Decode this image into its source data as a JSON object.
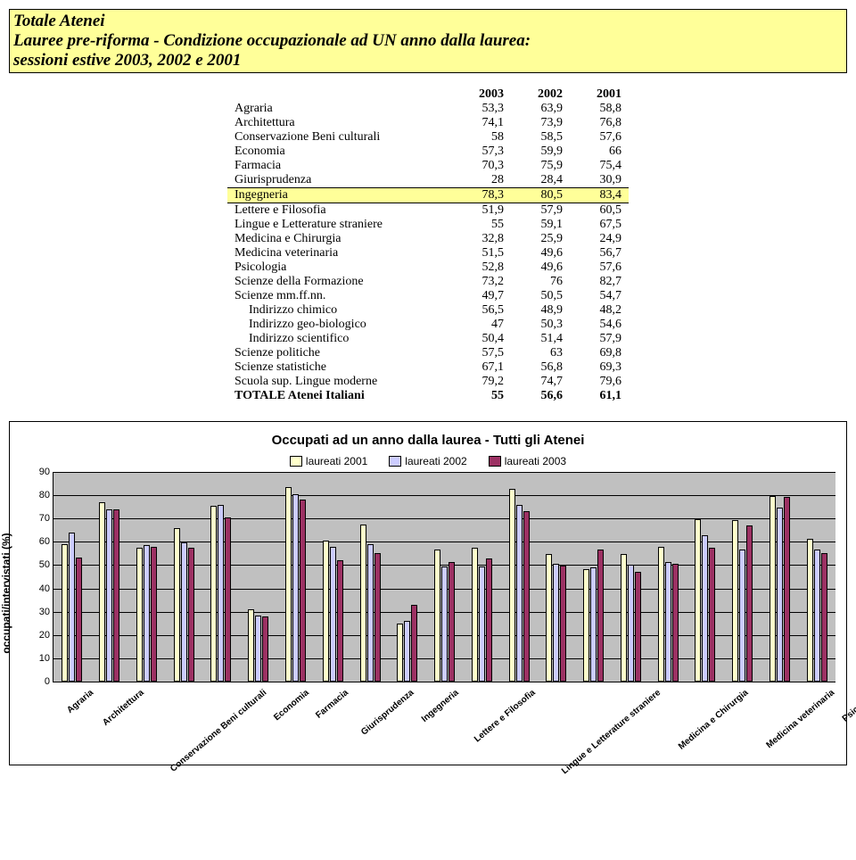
{
  "header": {
    "title": "Totale Atenei",
    "subtitle1": "Lauree pre-riforma - Condizione occupazionale ad UN anno dalla laurea:",
    "subtitle2": "sessioni estive 2003, 2002 e 2001"
  },
  "table": {
    "columns": [
      "2003",
      "2002",
      "2001"
    ],
    "rows": [
      {
        "label": "Agraria",
        "v": [
          "53,3",
          "63,9",
          "58,8"
        ]
      },
      {
        "label": "Architettura",
        "v": [
          "74,1",
          "73,9",
          "76,8"
        ]
      },
      {
        "label": "Conservazione Beni culturali",
        "v": [
          "58",
          "58,5",
          "57,6"
        ]
      },
      {
        "label": "Economia",
        "v": [
          "57,3",
          "59,9",
          "66"
        ]
      },
      {
        "label": "Farmacia",
        "v": [
          "70,3",
          "75,9",
          "75,4"
        ]
      },
      {
        "label": "Giurisprudenza",
        "v": [
          "28",
          "28,4",
          "30,9"
        ]
      },
      {
        "label": "Ingegneria",
        "v": [
          "78,3",
          "80,5",
          "83,4"
        ],
        "hl": true
      },
      {
        "label": "Lettere e Filosofia",
        "v": [
          "51,9",
          "57,9",
          "60,5"
        ]
      },
      {
        "label": "Lingue e Letterature straniere",
        "v": [
          "55",
          "59,1",
          "67,5"
        ]
      },
      {
        "label": "Medicina e Chirurgia",
        "v": [
          "32,8",
          "25,9",
          "24,9"
        ]
      },
      {
        "label": "Medicina veterinaria",
        "v": [
          "51,5",
          "49,6",
          "56,7"
        ]
      },
      {
        "label": "Psicologia",
        "v": [
          "52,8",
          "49,6",
          "57,6"
        ]
      },
      {
        "label": "Scienze della Formazione",
        "v": [
          "73,2",
          "76",
          "82,7"
        ]
      },
      {
        "label": "Scienze mm.ff.nn.",
        "v": [
          "49,7",
          "50,5",
          "54,7"
        ]
      },
      {
        "label": "Indirizzo chimico",
        "v": [
          "56,5",
          "48,9",
          "48,2"
        ],
        "indent": true
      },
      {
        "label": "Indirizzo geo-biologico",
        "v": [
          "47",
          "50,3",
          "54,6"
        ],
        "indent": true
      },
      {
        "label": "Indirizzo scientifico",
        "v": [
          "50,4",
          "51,4",
          "57,9"
        ],
        "indent": true
      },
      {
        "label": "Scienze politiche",
        "v": [
          "57,5",
          "63",
          "69,8"
        ]
      },
      {
        "label": "Scienze statistiche",
        "v": [
          "67,1",
          "56,8",
          "69,3"
        ]
      },
      {
        "label": "Scuola sup. Lingue moderne",
        "v": [
          "79,2",
          "74,7",
          "79,6"
        ]
      },
      {
        "label": "TOTALE Atenei Italiani",
        "v": [
          "55",
          "56,6",
          "61,1"
        ],
        "total": true
      }
    ]
  },
  "chart": {
    "title": "Occupati ad un anno dalla laurea - Tutti gli Atenei",
    "y_label": "occupati/intervistati (%)",
    "ymax": 90,
    "ytick_step": 10,
    "legend": [
      {
        "label": "laureati 2001",
        "color": "#ffffcc"
      },
      {
        "label": "laureati 2002",
        "color": "#ccccff"
      },
      {
        "label": "laureati 2003",
        "color": "#9c3163"
      }
    ],
    "background_color": "#c0c0c0",
    "categories": [
      "Agraria",
      "Architettura",
      "Conservazione Beni culturali",
      "Economia",
      "Farmacia",
      "Giurisprudenza",
      "Ingegneria",
      "Lettere e Filosofia",
      "Lingue e Letterature straniere",
      "Medicina e Chirurgia",
      "Medicina veterinaria",
      "Psicologia",
      "Scienze della Formazione",
      "Scienze mm.ff.nn.",
      "Indirizzo chimico",
      "Indirizzo geo-biologico",
      "Indirizzo scientifico",
      "Scienze politiche",
      "Scienze statistiche",
      "Scuola sup. Lingue moderne",
      "TOTALE Atenei Italiani"
    ],
    "series": {
      "s2001": [
        58.8,
        76.8,
        57.6,
        66,
        75.4,
        30.9,
        83.4,
        60.5,
        67.5,
        24.9,
        56.7,
        57.6,
        82.7,
        54.7,
        48.2,
        54.6,
        57.9,
        69.8,
        69.3,
        79.6,
        61.1
      ],
      "s2002": [
        63.9,
        73.9,
        58.5,
        59.9,
        75.9,
        28.4,
        80.5,
        57.9,
        59.1,
        25.9,
        49.6,
        49.6,
        76,
        50.5,
        48.9,
        50.3,
        51.4,
        63,
        56.8,
        74.7,
        56.6
      ],
      "s2003": [
        53.3,
        74.1,
        58,
        57.3,
        70.3,
        28,
        78.3,
        51.9,
        55,
        32.8,
        51.5,
        52.8,
        73.2,
        49.7,
        56.5,
        47,
        50.4,
        57.5,
        67.1,
        79.2,
        55
      ]
    }
  }
}
